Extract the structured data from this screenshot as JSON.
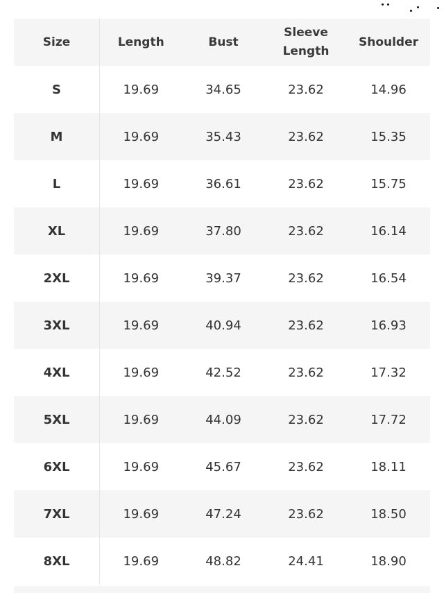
{
  "table": {
    "headers": [
      "Size",
      "Length",
      "Bust",
      "Sleeve Length",
      "Shoulder"
    ],
    "rows": [
      [
        "S",
        "19.69",
        "34.65",
        "23.62",
        "14.96"
      ],
      [
        "M",
        "19.69",
        "35.43",
        "23.62",
        "15.35"
      ],
      [
        "L",
        "19.69",
        "36.61",
        "23.62",
        "15.75"
      ],
      [
        "XL",
        "19.69",
        "37.80",
        "23.62",
        "16.14"
      ],
      [
        "2XL",
        "19.69",
        "39.37",
        "23.62",
        "16.54"
      ],
      [
        "3XL",
        "19.69",
        "40.94",
        "23.62",
        "16.93"
      ],
      [
        "4XL",
        "19.69",
        "42.52",
        "23.62",
        "17.32"
      ],
      [
        "5XL",
        "19.69",
        "44.09",
        "23.62",
        "17.72"
      ],
      [
        "6XL",
        "19.69",
        "45.67",
        "23.62",
        "18.11"
      ],
      [
        "7XL",
        "19.69",
        "47.24",
        "23.62",
        "18.50"
      ],
      [
        "8XL",
        "19.69",
        "48.82",
        "24.41",
        "18.90"
      ]
    ]
  },
  "colors": {
    "stripe": "#f5f5f5",
    "text": "#333333"
  }
}
